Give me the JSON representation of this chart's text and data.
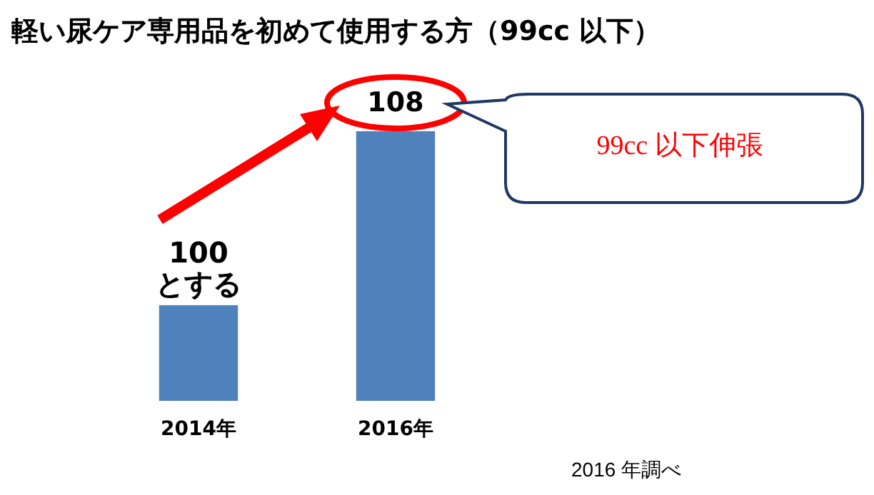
{
  "chart_data": {
    "type": "bar",
    "title": "軽い尿ケア専用品を初めて使用する方（99cc 以下）",
    "categories": [
      "2014年",
      "2016年"
    ],
    "values": [
      100,
      108
    ],
    "value_labels": [
      "100 とする",
      "108"
    ],
    "color": "#4f81bd",
    "ylim": [
      95.6,
      108
    ],
    "tick_labels": "x",
    "annotations": [
      "99cc 以下伸張",
      "2016 年調べ"
    ]
  }
}
